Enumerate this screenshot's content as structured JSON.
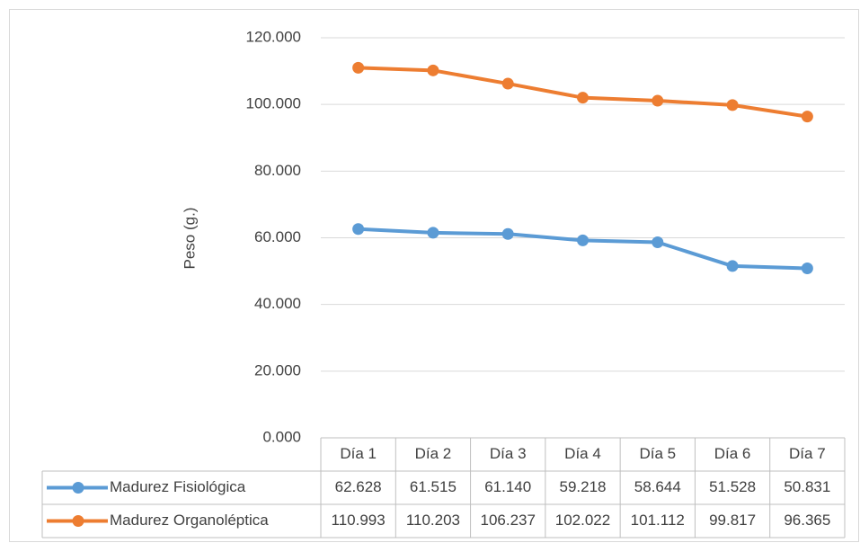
{
  "chart_data": {
    "type": "line",
    "ylabel": "Peso (g.)",
    "categories": [
      "Día 1",
      "Día 2",
      "Día 3",
      "Día 4",
      "Día 5",
      "Día 6",
      "Día 7"
    ],
    "series": [
      {
        "name": "Madurez Fisiológica",
        "color": "#5b9bd5",
        "values": [
          62.628,
          61.515,
          61.14,
          59.218,
          58.644,
          51.528,
          50.831
        ],
        "value_labels": [
          "62.628",
          "61.515",
          "61.140",
          "59.218",
          "58.644",
          "51.528",
          "50.831"
        ]
      },
      {
        "name": "Madurez Organoléptica",
        "color": "#ed7d31",
        "values": [
          110.993,
          110.203,
          106.237,
          102.022,
          101.112,
          99.817,
          96.365
        ],
        "value_labels": [
          "110.993",
          "110.203",
          "106.237",
          "102.022",
          "101.112",
          "99.817",
          "96.365"
        ]
      }
    ],
    "ylim": [
      0,
      120
    ],
    "yticks": [
      {
        "value": 0,
        "label": "0.000"
      },
      {
        "value": 20,
        "label": "20.000"
      },
      {
        "value": 40,
        "label": "40.000"
      },
      {
        "value": 60,
        "label": "60.000"
      },
      {
        "value": 80,
        "label": "80.000"
      },
      {
        "value": 100,
        "label": "100.000"
      },
      {
        "value": 120,
        "label": "120.000"
      }
    ],
    "grid": true
  }
}
